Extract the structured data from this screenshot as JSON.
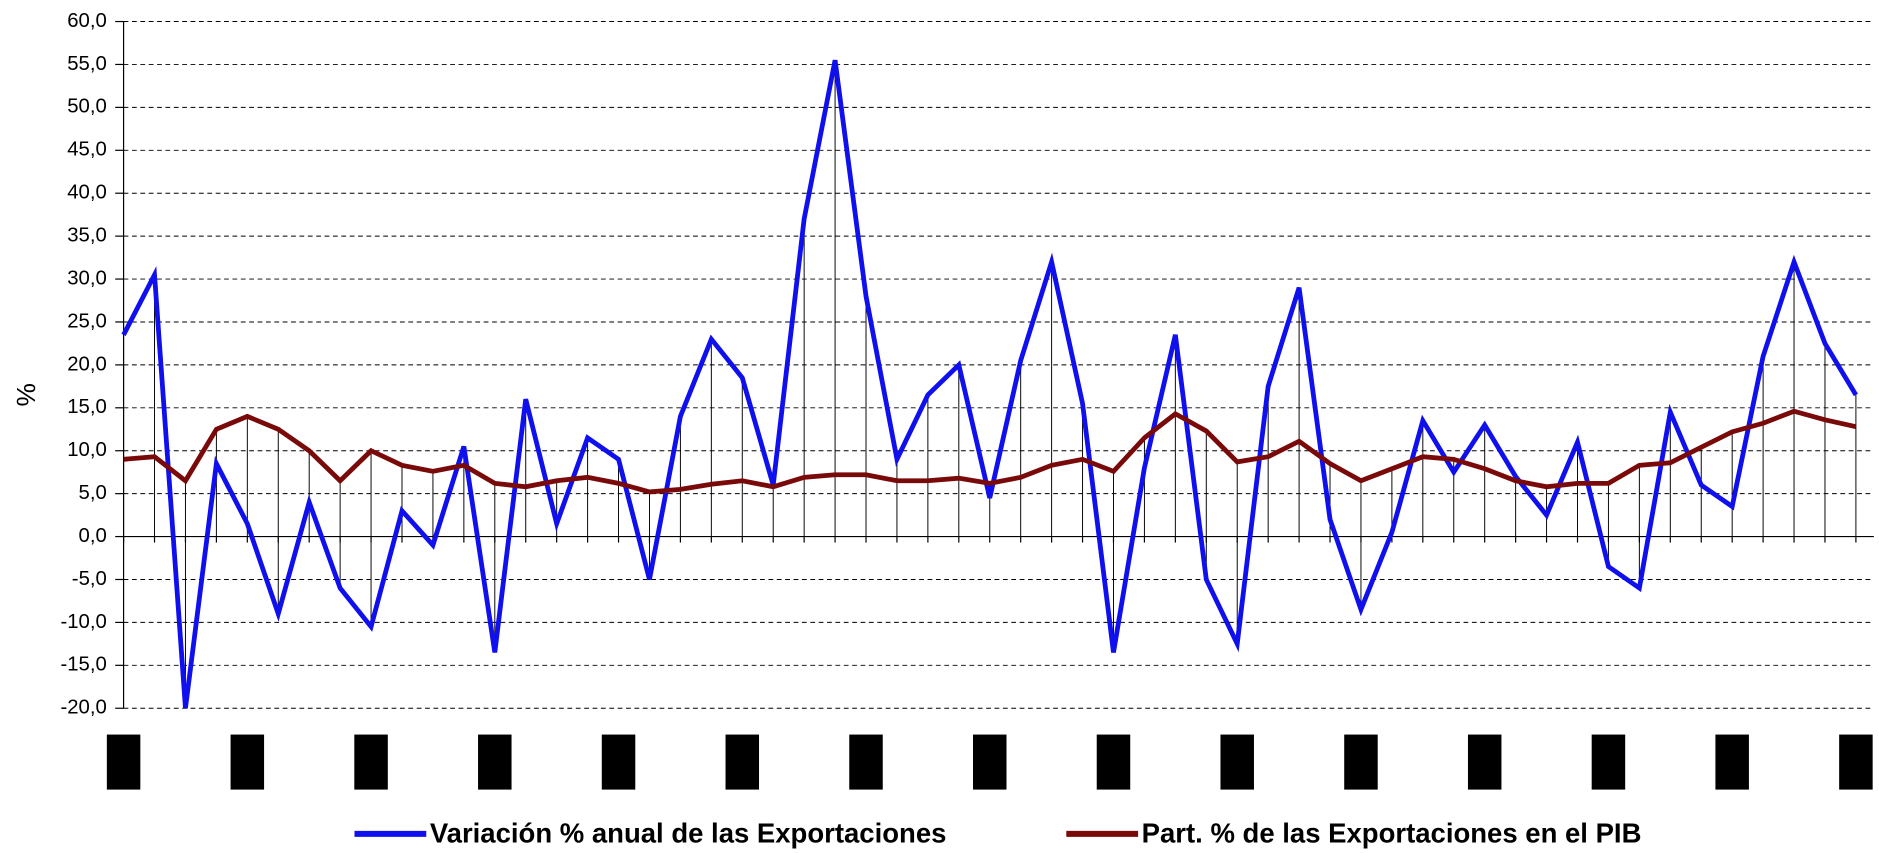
{
  "chart_data": {
    "type": "line",
    "y_label": "%",
    "categories": [
      null,
      null,
      null,
      null,
      null,
      null,
      null,
      null,
      null,
      null,
      null,
      null,
      null,
      null,
      null,
      null,
      null,
      null,
      null,
      null,
      null,
      null,
      null,
      null,
      null,
      null,
      null,
      null,
      null,
      null,
      null,
      null,
      null,
      null,
      null,
      null,
      null,
      null,
      null,
      null,
      null,
      null,
      null,
      null,
      null,
      null,
      null,
      null,
      null,
      null,
      null,
      null,
      null,
      null,
      null,
      null,
      null
    ],
    "ylim": [
      -20,
      60
    ],
    "yticks": [
      {
        "value": -20,
        "label": "-20,0"
      },
      {
        "value": -15,
        "label": "-15,0"
      },
      {
        "value": -10,
        "label": "-10,0"
      },
      {
        "value": -5,
        "label": "-5,0"
      },
      {
        "value": 0,
        "label": "0,0"
      },
      {
        "value": 5,
        "label": "5,0"
      },
      {
        "value": 10,
        "label": "10,0"
      },
      {
        "value": 15,
        "label": "15,0"
      },
      {
        "value": 20,
        "label": "20,0"
      },
      {
        "value": 25,
        "label": "25,0"
      },
      {
        "value": 30,
        "label": "30,0"
      },
      {
        "value": 35,
        "label": "35,0"
      },
      {
        "value": 40,
        "label": "40,0"
      },
      {
        "value": 45,
        "label": "45,0"
      },
      {
        "value": 50,
        "label": "50,0"
      },
      {
        "value": 55,
        "label": "55,0"
      },
      {
        "value": 60,
        "label": "60,0"
      }
    ],
    "grid": true,
    "series": [
      {
        "name": "Variación % anual de las Exportaciones",
        "color": "#1010ee",
        "values": [
          23.5,
          30.5,
          -20,
          8.5,
          1.5,
          -9,
          4,
          -6,
          -10.5,
          3,
          -1,
          10.5,
          -13.5,
          16,
          1.5,
          11.5,
          9,
          -5,
          14,
          23,
          18.5,
          6,
          37,
          55.5,
          28,
          9,
          16.5,
          20,
          4.5,
          20.5,
          32,
          15.5,
          -13.5,
          8,
          23.5,
          -5,
          -12.5,
          17.5,
          29,
          2,
          -8.5,
          0.5,
          13.5,
          7.5,
          13,
          7,
          2.5,
          11,
          -3.5,
          -6,
          14.5,
          6,
          3.5,
          21,
          32,
          22.5,
          16.5
        ]
      },
      {
        "name": "Part. % de las Exportaciones en el PIB",
        "color": "#7a0a0a",
        "values": [
          9,
          9.3,
          6.5,
          12.5,
          14,
          12.5,
          10,
          6.5,
          10,
          8.3,
          7.6,
          8.3,
          6.2,
          5.8,
          6.5,
          6.9,
          6.2,
          5.2,
          5.5,
          6.1,
          6.5,
          5.8,
          6.9,
          7.2,
          7.2,
          6.5,
          6.5,
          6.8,
          6.2,
          6.9,
          8.3,
          9,
          7.6,
          11.5,
          14.3,
          12.3,
          8.7,
          9.3,
          11.1,
          8.5,
          6.5,
          7.9,
          9.3,
          9,
          7.9,
          6.5,
          5.8,
          6.2,
          6.2,
          8.3,
          8.6,
          10.4,
          12.2,
          13.2,
          14.6,
          13.6,
          12.8
        ]
      }
    ]
  }
}
